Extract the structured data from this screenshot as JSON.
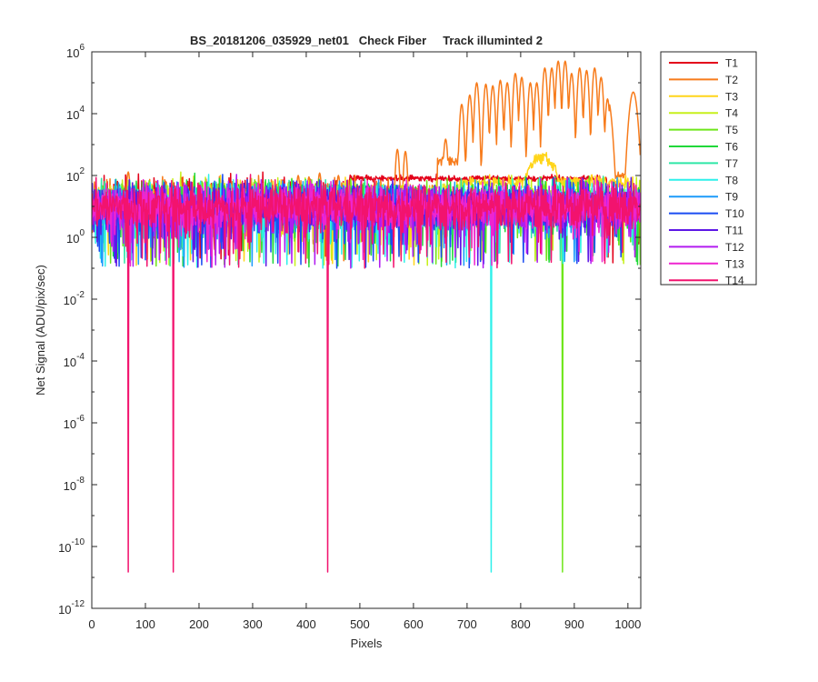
{
  "chart_data": {
    "type": "line",
    "title": "BS_20181206_035929_net01   Check Fiber     Track illuminted 2",
    "xlabel": "Pixels",
    "ylabel": "Net Signal (ADU/pix/sec)",
    "xlim": [
      0,
      1024
    ],
    "ylim": [
      1e-12,
      1000000.0
    ],
    "yscale": "log",
    "grid": false,
    "legend": "outside-right",
    "xticks": [
      0,
      100,
      200,
      300,
      400,
      500,
      600,
      700,
      800,
      900,
      1000
    ],
    "xtick_labels": [
      "0",
      "100",
      "200",
      "300",
      "400",
      "500",
      "600",
      "700",
      "800",
      "900",
      "1000"
    ],
    "yticks": [
      {
        "value": 1e-12,
        "base": "10",
        "exp": "-12"
      },
      {
        "value": 1e-10,
        "base": "10",
        "exp": "-10"
      },
      {
        "value": 1e-08,
        "base": "10",
        "exp": "-8"
      },
      {
        "value": 1e-06,
        "base": "10",
        "exp": "-6"
      },
      {
        "value": 0.0001,
        "base": "10",
        "exp": "-4"
      },
      {
        "value": 0.01,
        "base": "10",
        "exp": "-2"
      },
      {
        "value": 1,
        "base": "10",
        "exp": "0"
      },
      {
        "value": 100,
        "base": "10",
        "exp": "2"
      },
      {
        "value": 10000,
        "base": "10",
        "exp": "4"
      },
      {
        "value": 1000000,
        "base": "10",
        "exp": "6"
      }
    ],
    "series": [
      {
        "name": "T1",
        "color": "#e3001a",
        "base": 14,
        "dips": []
      },
      {
        "name": "T2",
        "color": "#f77b1b",
        "base": 14,
        "dips": []
      },
      {
        "name": "T3",
        "color": "#ffd51a",
        "base": 12,
        "dips": []
      },
      {
        "name": "T4",
        "color": "#c7f01c",
        "base": 12,
        "dips": []
      },
      {
        "name": "T5",
        "color": "#6ee61a",
        "base": 11,
        "dips": [
          {
            "x": 878,
            "y": 1.5e-11
          }
        ]
      },
      {
        "name": "T6",
        "color": "#21d83a",
        "base": 11,
        "dips": []
      },
      {
        "name": "T7",
        "color": "#2ee6a6",
        "base": 11,
        "dips": []
      },
      {
        "name": "T8",
        "color": "#2ef0ea",
        "base": 10,
        "dips": [
          {
            "x": 745,
            "y": 1.5e-11
          }
        ]
      },
      {
        "name": "T9",
        "color": "#1c9bfa",
        "base": 10,
        "dips": []
      },
      {
        "name": "T10",
        "color": "#1a4cf2",
        "base": 10,
        "dips": []
      },
      {
        "name": "T11",
        "color": "#5d17e6",
        "base": 10,
        "dips": []
      },
      {
        "name": "T12",
        "color": "#b21cf0",
        "base": 10,
        "dips": []
      },
      {
        "name": "T13",
        "color": "#ee25cf",
        "base": 10,
        "dips": []
      },
      {
        "name": "T14",
        "color": "#f2136e",
        "base": 10,
        "dips": [
          {
            "x": 68,
            "y": 1.5e-11
          },
          {
            "x": 152,
            "y": 1.5e-11
          },
          {
            "x": 440,
            "y": 1.5e-11
          }
        ]
      }
    ],
    "features": {
      "T1": {
        "rise_start": 480,
        "level": 80,
        "end_dip": 950
      },
      "T2": {
        "early_peaks": [
          {
            "x": 68,
            "y": 130
          },
          {
            "x": 385,
            "y": 100
          },
          {
            "x": 405,
            "y": 90
          },
          {
            "x": 425,
            "y": 120
          },
          {
            "x": 460,
            "y": 100
          },
          {
            "x": 570,
            "y": 700
          },
          {
            "x": 585,
            "y": 600
          }
        ],
        "rise_start": 645,
        "peaks": [
          {
            "x": 660,
            "y": 1500
          },
          {
            "x": 690,
            "y": 20000
          },
          {
            "x": 705,
            "y": 40000
          },
          {
            "x": 718,
            "y": 100000
          },
          {
            "x": 735,
            "y": 90000
          },
          {
            "x": 748,
            "y": 80000
          },
          {
            "x": 762,
            "y": 120000
          },
          {
            "x": 775,
            "y": 100000
          },
          {
            "x": 790,
            "y": 200000
          },
          {
            "x": 802,
            "y": 150000
          },
          {
            "x": 818,
            "y": 100000
          },
          {
            "x": 830,
            "y": 100000
          },
          {
            "x": 845,
            "y": 300000
          },
          {
            "x": 858,
            "y": 300000
          },
          {
            "x": 870,
            "y": 500000
          },
          {
            "x": 883,
            "y": 500000
          },
          {
            "x": 895,
            "y": 200000
          },
          {
            "x": 910,
            "y": 300000
          },
          {
            "x": 923,
            "y": 250000
          },
          {
            "x": 938,
            "y": 300000
          },
          {
            "x": 950,
            "y": 150000
          },
          {
            "x": 962,
            "y": 30000
          },
          {
            "x": 1010,
            "y": 50000
          }
        ],
        "valley_level": 300,
        "tail_level": 100
      },
      "T3": {
        "rise_start": 690,
        "level": 60,
        "peak": {
          "x": 840,
          "y": 400
        }
      }
    }
  }
}
